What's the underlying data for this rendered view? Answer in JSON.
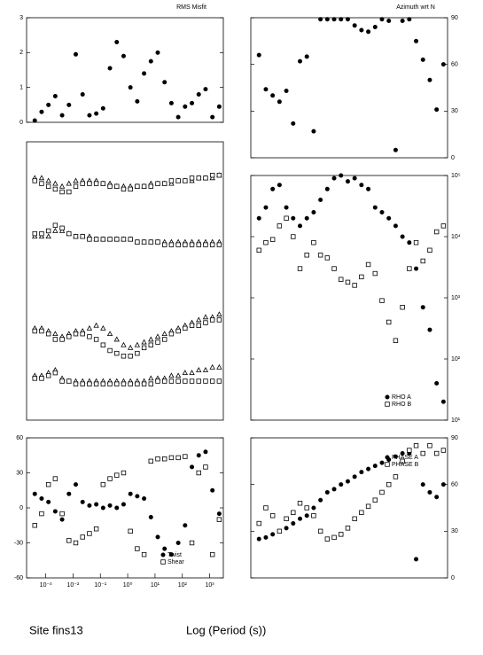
{
  "chart_data": [
    {
      "type": "scatter",
      "title": "RMS Misfit",
      "x": [
        -3.4,
        -3.15,
        -2.9,
        -2.65,
        -2.4,
        -2.15,
        -1.9,
        -1.65,
        -1.4,
        -1.15,
        -0.9,
        -0.65,
        -0.4,
        -0.15,
        0.1,
        0.35,
        0.6,
        0.85,
        1.1,
        1.35,
        1.6,
        1.85,
        2.1,
        2.35,
        2.6,
        2.85,
        3.1,
        3.35
      ],
      "series": [
        {
          "color": "#000000",
          "marker": "circle",
          "filled": true,
          "values": [
            0.05,
            0.3,
            0.5,
            0.75,
            0.2,
            0.5,
            1.95,
            0.8,
            0.2,
            0.25,
            0.4,
            1.55,
            2.3,
            1.9,
            1.0,
            0.6,
            1.4,
            1.75,
            2.0,
            1.15,
            0.55,
            0.15,
            0.45,
            0.55,
            0.8,
            0.95,
            0.15,
            0.45
          ]
        }
      ],
      "xlim": [
        -3.7,
        3.5
      ],
      "ylim": [
        0,
        3
      ],
      "yticks": [
        0,
        1,
        2,
        3
      ],
      "yaxis": "left"
    },
    {
      "type": "scatter",
      "title": "Azimuth wrt N",
      "x": [
        -3.4,
        -3.15,
        -2.9,
        -2.65,
        -2.4,
        -2.15,
        -1.9,
        -1.65,
        -1.4,
        -1.15,
        -0.9,
        -0.65,
        -0.4,
        -0.15,
        0.1,
        0.35,
        0.6,
        0.85,
        1.1,
        1.35,
        1.6,
        1.85,
        2.1,
        2.35,
        2.6,
        2.85,
        3.1,
        3.35
      ],
      "series": [
        {
          "color": "#000000",
          "marker": "circle",
          "filled": true,
          "values": [
            66,
            44,
            40,
            36,
            43,
            22,
            62,
            65,
            17,
            89,
            89,
            89,
            89,
            89,
            85,
            82,
            81,
            84,
            89,
            88,
            5,
            88,
            89,
            75,
            63,
            50,
            31,
            60
          ]
        }
      ],
      "xlim": [
        -3.7,
        3.5
      ],
      "ylim": [
        0,
        90
      ],
      "yticks": [
        0,
        30,
        60,
        90
      ],
      "yaxis": "right"
    },
    {
      "type": "scatter",
      "x": [
        -3.4,
        -3.15,
        -2.9,
        -2.65,
        -2.4,
        -2.15,
        -1.9,
        -1.65,
        -1.4,
        -1.15,
        -0.9,
        -0.65,
        -0.4,
        -0.15,
        0.1,
        0.35,
        0.6,
        0.85,
        1.1,
        1.35,
        1.6,
        1.85,
        2.1,
        2.35,
        2.6,
        2.85,
        3.1,
        3.35
      ],
      "series": [
        {
          "color": "#000000",
          "marker": "triangle",
          "filled": false,
          "values": [
            87,
            87,
            86,
            85,
            84,
            85,
            86,
            86,
            86,
            86,
            85,
            85,
            84,
            84,
            84,
            84,
            84,
            85,
            85,
            85,
            85,
            86,
            86,
            86,
            87,
            87,
            87,
            88
          ]
        },
        {
          "color": "#000000",
          "marker": "square",
          "filled": false,
          "values": [
            86,
            85,
            84,
            83,
            82,
            82,
            84,
            85,
            85,
            85,
            85,
            84,
            84,
            83,
            83,
            84,
            84,
            84,
            85,
            85,
            86,
            86,
            86,
            87,
            87,
            87,
            88,
            88
          ]
        },
        {
          "color": "#000000",
          "marker": "triangle",
          "filled": false,
          "values": [
            66,
            66,
            66,
            68,
            68,
            67,
            66,
            66,
            66,
            65,
            65,
            65,
            65,
            65,
            65,
            64,
            64,
            64,
            64,
            64,
            64,
            64,
            64,
            64,
            64,
            64,
            64,
            64
          ]
        },
        {
          "color": "#000000",
          "marker": "square",
          "filled": false,
          "values": [
            67,
            67,
            68,
            70,
            69,
            67,
            66,
            66,
            65,
            65,
            65,
            65,
            65,
            65,
            65,
            64,
            64,
            64,
            64,
            63,
            63,
            63,
            63,
            63,
            63,
            63,
            63,
            63
          ]
        },
        {
          "color": "#000000",
          "marker": "triangle",
          "filled": false,
          "values": [
            33,
            33,
            32,
            31,
            30,
            31,
            32,
            32,
            33,
            34,
            33,
            31,
            29,
            27,
            26,
            27,
            28,
            29,
            30,
            31,
            32,
            33,
            34,
            35,
            36,
            37,
            37,
            38
          ]
        },
        {
          "color": "#000000",
          "marker": "square",
          "filled": false,
          "values": [
            32,
            32,
            31,
            29,
            29,
            30,
            31,
            31,
            30,
            29,
            27,
            25,
            24,
            23,
            23,
            24,
            26,
            27,
            28,
            29,
            31,
            32,
            33,
            34,
            34,
            35,
            36,
            36
          ]
        },
        {
          "color": "#000000",
          "marker": "triangle",
          "filled": false,
          "values": [
            16,
            16,
            17,
            18,
            15,
            14,
            14,
            14,
            14,
            14,
            14,
            14,
            14,
            14,
            14,
            14,
            14,
            15,
            15,
            15,
            16,
            16,
            17,
            17,
            18,
            18,
            19,
            19
          ]
        },
        {
          "color": "#000000",
          "marker": "square",
          "filled": false,
          "values": [
            15,
            15,
            16,
            17,
            14,
            14,
            13,
            13,
            13,
            13,
            13,
            13,
            13,
            13,
            13,
            13,
            13,
            13,
            14,
            14,
            14,
            14,
            14,
            14,
            14,
            14,
            14,
            14
          ]
        }
      ],
      "xlim": [
        -3.7,
        3.5
      ],
      "ylim": [
        0,
        100
      ]
    },
    {
      "type": "scatter",
      "x": [
        -3.4,
        -3.15,
        -2.9,
        -2.65,
        -2.4,
        -2.15,
        -1.9,
        -1.65,
        -1.4,
        -1.15,
        -0.9,
        -0.65,
        -0.4,
        -0.15,
        0.1,
        0.35,
        0.6,
        0.85,
        1.1,
        1.35,
        1.6,
        1.85,
        2.1,
        2.35,
        2.6,
        2.85,
        3.1,
        3.35
      ],
      "series": [
        {
          "name": "RHO A",
          "color": "#000000",
          "marker": "circle",
          "filled": true,
          "values": [
            20000,
            30000,
            60000,
            70000,
            30000,
            20000,
            15000,
            20000,
            25000,
            40000,
            60000,
            90000,
            100000,
            80000,
            90000,
            70000,
            60000,
            30000,
            25000,
            20000,
            15000,
            10000,
            8000,
            3000,
            700,
            300,
            40,
            20
          ]
        },
        {
          "name": "RHO B",
          "color": "#000000",
          "marker": "square",
          "filled": false,
          "values": [
            6000,
            8000,
            9000,
            15000,
            20000,
            10000,
            3000,
            5000,
            8000,
            5000,
            4500,
            3000,
            2000,
            1800,
            1600,
            2200,
            3500,
            2500,
            900,
            400,
            200,
            700,
            3000,
            8000,
            4000,
            6000,
            12000,
            15000
          ]
        }
      ],
      "xlim": [
        -3.7,
        3.5
      ],
      "ylim": [
        10,
        100000
      ],
      "log_y": true,
      "yticks": [
        {
          "value": 10,
          "label": "10¹"
        },
        {
          "value": 100,
          "label": "10²"
        },
        {
          "value": 1000,
          "label": "10³"
        },
        {
          "value": 10000,
          "label": "10⁴"
        },
        {
          "value": 100000,
          "label": "10⁵"
        }
      ],
      "yaxis": "right",
      "legend": "lower right"
    },
    {
      "type": "scatter",
      "x": [
        -3.4,
        -3.15,
        -2.9,
        -2.65,
        -2.4,
        -2.15,
        -1.9,
        -1.65,
        -1.4,
        -1.15,
        -0.9,
        -0.65,
        -0.4,
        -0.15,
        0.1,
        0.35,
        0.6,
        0.85,
        1.1,
        1.35,
        1.6,
        1.85,
        2.1,
        2.35,
        2.6,
        2.85,
        3.1,
        3.35
      ],
      "series": [
        {
          "name": "Twist",
          "color": "#000000",
          "marker": "circle",
          "filled": true,
          "values": [
            12,
            8,
            5,
            -3,
            -10,
            12,
            20,
            5,
            2,
            3,
            0,
            2,
            0,
            3,
            12,
            10,
            8,
            -8,
            -25,
            -35,
            -40,
            -30,
            -15,
            35,
            45,
            48,
            15,
            -5
          ]
        },
        {
          "name": "Shear",
          "color": "#000000",
          "marker": "square",
          "filled": false,
          "values": [
            -15,
            -5,
            20,
            25,
            -5,
            -28,
            -30,
            -25,
            -22,
            -18,
            20,
            25,
            28,
            30,
            -20,
            -35,
            -40,
            40,
            42,
            42,
            43,
            43,
            44,
            -30,
            30,
            35,
            -40,
            -10
          ]
        }
      ],
      "xlim": [
        -3.7,
        3.5
      ],
      "ylim": [
        -60,
        60
      ],
      "yticks": [
        -60,
        -30,
        0,
        30,
        60
      ],
      "yaxis": "left",
      "xticks": [
        {
          "value": -3,
          "label": "10⁻³"
        },
        {
          "value": -2,
          "label": "10⁻²"
        },
        {
          "value": -1,
          "label": "10⁻¹"
        },
        {
          "value": 0,
          "label": "10⁰"
        },
        {
          "value": 1,
          "label": "10¹"
        },
        {
          "value": 2,
          "label": "10²"
        },
        {
          "value": 3,
          "label": "10³"
        }
      ],
      "legend": "lower right"
    },
    {
      "type": "scatter",
      "x": [
        -3.4,
        -3.15,
        -2.9,
        -2.65,
        -2.4,
        -2.15,
        -1.9,
        -1.65,
        -1.4,
        -1.15,
        -0.9,
        -0.65,
        -0.4,
        -0.15,
        0.1,
        0.35,
        0.6,
        0.85,
        1.1,
        1.35,
        1.6,
        1.85,
        2.1,
        2.35,
        2.6,
        2.85,
        3.1,
        3.35
      ],
      "series": [
        {
          "name": "PHASE A",
          "color": "#000000",
          "marker": "circle",
          "filled": true,
          "values": [
            25,
            26,
            28,
            30,
            32,
            35,
            38,
            40,
            45,
            50,
            55,
            57,
            60,
            62,
            65,
            68,
            70,
            72,
            74,
            76,
            78,
            80,
            80,
            12,
            60,
            55,
            52,
            60
          ]
        },
        {
          "name": "PHASE B",
          "color": "#000000",
          "marker": "square",
          "filled": false,
          "values": [
            35,
            45,
            40,
            30,
            38,
            42,
            48,
            45,
            40,
            30,
            25,
            26,
            28,
            32,
            38,
            42,
            46,
            50,
            55,
            60,
            65,
            75,
            82,
            85,
            80,
            85,
            80,
            82
          ]
        }
      ],
      "xlim": [
        -3.7,
        3.5
      ],
      "ylim": [
        0,
        90
      ],
      "yticks": [
        0,
        30,
        60,
        90
      ],
      "yaxis": "right",
      "legend": "upper right"
    }
  ],
  "footer": {
    "site": "Site fins13",
    "xlabel": "Log (Period (s))"
  }
}
